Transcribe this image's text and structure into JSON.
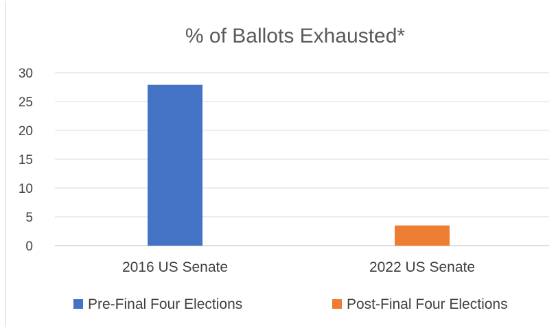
{
  "chart_data": {
    "type": "bar",
    "title": "% of Ballots Exhausted*",
    "xlabel": "",
    "ylabel": "",
    "ylim": [
      0,
      30
    ],
    "yticks": [
      0,
      5,
      10,
      15,
      20,
      25,
      30
    ],
    "categories": [
      "2016 US Senate",
      "2022 US Senate"
    ],
    "series": [
      {
        "name": "Pre-Final Four Elections",
        "color": "#4472C4",
        "values": [
          27.9,
          null
        ]
      },
      {
        "name": "Post-Final Four Elections",
        "color": "#ED7D31",
        "values": [
          null,
          3.5
        ]
      }
    ],
    "grid": true,
    "legend": "bottom"
  }
}
